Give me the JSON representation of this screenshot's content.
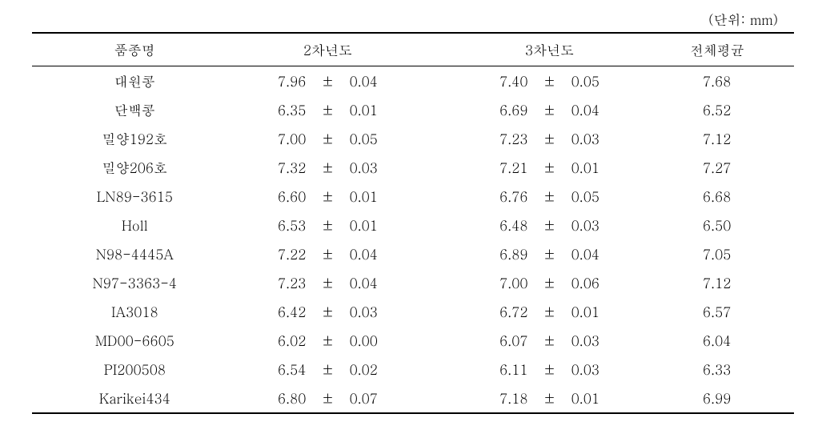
{
  "unit_label": "(단위: mm)",
  "headers": {
    "name": "품종명",
    "year2": "2차년도",
    "year3": "3차년도",
    "avg": "전체평균"
  },
  "pm_symbol": "±",
  "rows": [
    {
      "name": "대원콩",
      "y2_val": "7.96",
      "y2_err": "0.04",
      "y3_val": "7.40",
      "y3_err": "0.05",
      "avg": "7.68"
    },
    {
      "name": "단백콩",
      "y2_val": "6.35",
      "y2_err": "0.01",
      "y3_val": "6.69",
      "y3_err": "0.04",
      "avg": "6.52"
    },
    {
      "name": "밀양192호",
      "y2_val": "7.00",
      "y2_err": "0.05",
      "y3_val": "7.23",
      "y3_err": "0.03",
      "avg": "7.12"
    },
    {
      "name": "밀양206호",
      "y2_val": "7.32",
      "y2_err": "0.03",
      "y3_val": "7.21",
      "y3_err": "0.01",
      "avg": "7.27"
    },
    {
      "name": "LN89-3615",
      "y2_val": "6.60",
      "y2_err": "0.01",
      "y3_val": "6.76",
      "y3_err": "0.05",
      "avg": "6.68"
    },
    {
      "name": "Holl",
      "y2_val": "6.53",
      "y2_err": "0.01",
      "y3_val": "6.48",
      "y3_err": "0.03",
      "avg": "6.50"
    },
    {
      "name": "N98-4445A",
      "y2_val": "7.22",
      "y2_err": "0.04",
      "y3_val": "6.89",
      "y3_err": "0.04",
      "avg": "7.05"
    },
    {
      "name": "N97-3363-4",
      "y2_val": "7.23",
      "y2_err": "0.04",
      "y3_val": "7.00",
      "y3_err": "0.06",
      "avg": "7.12"
    },
    {
      "name": "IA3018",
      "y2_val": "6.42",
      "y2_err": "0.03",
      "y3_val": "6.72",
      "y3_err": "0.01",
      "avg": "6.57"
    },
    {
      "name": "MD00-6605",
      "y2_val": "6.02",
      "y2_err": "0.00",
      "y3_val": "6.07",
      "y3_err": "0.03",
      "avg": "6.04"
    },
    {
      "name": "PI200508",
      "y2_val": "6.54",
      "y2_err": "0.02",
      "y3_val": "6.11",
      "y3_err": "0.03",
      "avg": "6.33"
    },
    {
      "name": "Karikei434",
      "y2_val": "6.80",
      "y2_err": "0.07",
      "y3_val": "7.18",
      "y3_err": "0.01",
      "avg": "6.99"
    }
  ]
}
